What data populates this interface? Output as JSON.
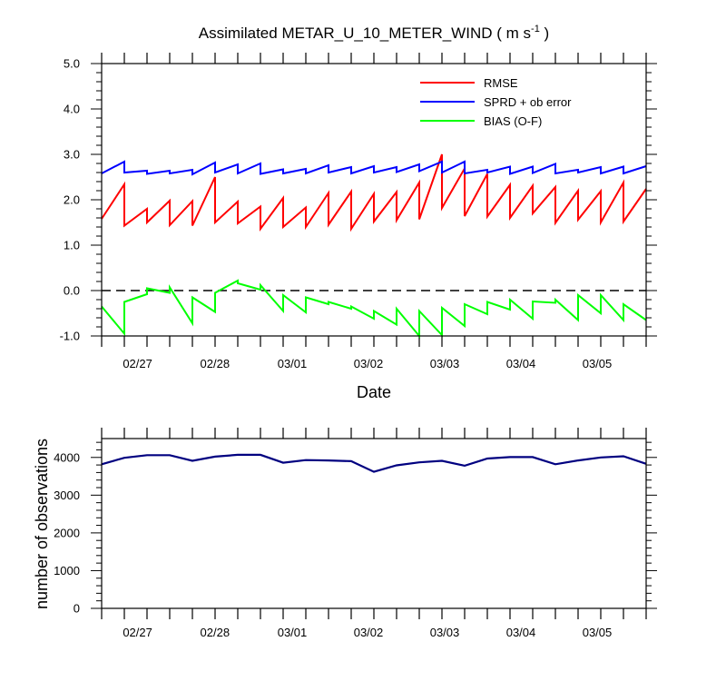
{
  "chart_data": [
    {
      "type": "line",
      "title": "Assimilated METAR_U_10_METER_WIND",
      "title_units": "( m s",
      "title_units_sup": "-1",
      "title_units_close": " )",
      "xlabel": "Date",
      "ylabel": "",
      "ylim": [
        -1.0,
        5.0
      ],
      "yticks": [
        "-1.0",
        "0.0",
        "1.0",
        "2.0",
        "3.0",
        "4.0",
        "5.0"
      ],
      "xlim": [
        0,
        36
      ],
      "xtick_labels": [
        "02/27",
        "02/28",
        "03/01",
        "03/02",
        "03/03",
        "03/04",
        "03/05"
      ],
      "reference_line_y": 0.0,
      "legend_position": "top-right",
      "series": [
        {
          "name": "RMSE",
          "color": "#ff0000",
          "segments": [
            [
              [
                0,
                1.58
              ],
              [
                1.5,
                2.34
              ]
            ],
            [
              [
                1.5,
                1.43
              ],
              [
                3,
                1.8
              ]
            ],
            [
              [
                3,
                1.5
              ],
              [
                4.5,
                1.98
              ]
            ],
            [
              [
                4.5,
                1.44
              ],
              [
                6,
                1.97
              ]
            ],
            [
              [
                6,
                1.43
              ],
              [
                7.5,
                2.5
              ]
            ],
            [
              [
                7.5,
                1.5
              ],
              [
                9,
                1.96
              ]
            ],
            [
              [
                9,
                1.48
              ],
              [
                10.5,
                1.85
              ]
            ],
            [
              [
                10.5,
                1.36
              ],
              [
                12,
                2.04
              ]
            ],
            [
              [
                12,
                1.4
              ],
              [
                13.5,
                1.83
              ]
            ],
            [
              [
                13.5,
                1.4
              ],
              [
                15,
                2.15
              ]
            ],
            [
              [
                15,
                1.45
              ],
              [
                16.5,
                2.18
              ]
            ],
            [
              [
                16.5,
                1.36
              ],
              [
                18,
                2.13
              ]
            ],
            [
              [
                18,
                1.52
              ],
              [
                19.5,
                2.17
              ]
            ],
            [
              [
                19.5,
                1.55
              ],
              [
                21,
                2.38
              ]
            ],
            [
              [
                21,
                1.57
              ],
              [
                22.5,
                3.0
              ]
            ],
            [
              [
                22.5,
                1.82
              ],
              [
                24,
                2.69
              ]
            ],
            [
              [
                24,
                1.64
              ],
              [
                25.5,
                2.57
              ]
            ],
            [
              [
                25.5,
                1.63
              ],
              [
                27,
                2.33
              ]
            ],
            [
              [
                27,
                1.6
              ],
              [
                28.5,
                2.31
              ]
            ],
            [
              [
                28.5,
                1.7
              ],
              [
                30,
                2.28
              ]
            ],
            [
              [
                30,
                1.49
              ],
              [
                31.5,
                2.2
              ]
            ],
            [
              [
                31.5,
                1.56
              ],
              [
                33,
                2.19
              ]
            ],
            [
              [
                33,
                1.5
              ],
              [
                34.5,
                2.38
              ]
            ],
            [
              [
                34.5,
                1.52
              ],
              [
                36,
                2.24
              ]
            ]
          ]
        },
        {
          "name": "SPRD + ob error",
          "color": "#0000ff",
          "segments": [
            [
              [
                0,
                2.58
              ],
              [
                1.5,
                2.84
              ]
            ],
            [
              [
                1.5,
                2.6
              ],
              [
                3,
                2.64
              ]
            ],
            [
              [
                3,
                2.57
              ],
              [
                4.5,
                2.64
              ]
            ],
            [
              [
                4.5,
                2.58
              ],
              [
                6,
                2.66
              ]
            ],
            [
              [
                6,
                2.56
              ],
              [
                7.5,
                2.82
              ]
            ],
            [
              [
                7.5,
                2.6
              ],
              [
                9,
                2.78
              ]
            ],
            [
              [
                9,
                2.58
              ],
              [
                10.5,
                2.8
              ]
            ],
            [
              [
                10.5,
                2.57
              ],
              [
                12,
                2.67
              ]
            ],
            [
              [
                12,
                2.58
              ],
              [
                13.5,
                2.68
              ]
            ],
            [
              [
                13.5,
                2.58
              ],
              [
                15,
                2.76
              ]
            ],
            [
              [
                15,
                2.6
              ],
              [
                16.5,
                2.72
              ]
            ],
            [
              [
                16.5,
                2.58
              ],
              [
                18,
                2.74
              ]
            ],
            [
              [
                18,
                2.6
              ],
              [
                19.5,
                2.72
              ]
            ],
            [
              [
                19.5,
                2.61
              ],
              [
                21,
                2.78
              ]
            ],
            [
              [
                21,
                2.63
              ],
              [
                22.5,
                2.84
              ]
            ],
            [
              [
                22.5,
                2.6
              ],
              [
                24,
                2.84
              ]
            ],
            [
              [
                24,
                2.58
              ],
              [
                25.5,
                2.66
              ]
            ],
            [
              [
                25.5,
                2.6
              ],
              [
                27,
                2.73
              ]
            ],
            [
              [
                27,
                2.57
              ],
              [
                28.5,
                2.73
              ]
            ],
            [
              [
                28.5,
                2.59
              ],
              [
                30,
                2.79
              ]
            ],
            [
              [
                30,
                2.58
              ],
              [
                31.5,
                2.66
              ]
            ],
            [
              [
                31.5,
                2.6
              ],
              [
                33,
                2.72
              ]
            ],
            [
              [
                33,
                2.58
              ],
              [
                34.5,
                2.73
              ]
            ],
            [
              [
                34.5,
                2.58
              ],
              [
                36,
                2.74
              ]
            ]
          ]
        },
        {
          "name": "BIAS (O-F)",
          "color": "#00ff00",
          "segments": [
            [
              [
                0,
                -0.35
              ],
              [
                1.5,
                -0.95
              ]
            ],
            [
              [
                1.5,
                -0.25
              ],
              [
                3,
                -0.08
              ]
            ],
            [
              [
                3,
                0.05
              ],
              [
                4.5,
                -0.05
              ]
            ],
            [
              [
                4.5,
                0.07
              ],
              [
                6,
                -0.72
              ]
            ],
            [
              [
                6,
                -0.15
              ],
              [
                7.5,
                -0.47
              ]
            ],
            [
              [
                7.5,
                -0.05
              ],
              [
                9,
                0.22
              ]
            ],
            [
              [
                9,
                0.16
              ],
              [
                10.5,
                0.02
              ]
            ],
            [
              [
                10.5,
                0.12
              ],
              [
                12,
                -0.45
              ]
            ],
            [
              [
                12,
                -0.1
              ],
              [
                13.5,
                -0.48
              ]
            ],
            [
              [
                13.5,
                -0.15
              ],
              [
                15,
                -0.3
              ]
            ],
            [
              [
                15,
                -0.25
              ],
              [
                16.5,
                -0.4
              ]
            ],
            [
              [
                16.5,
                -0.35
              ],
              [
                18,
                -0.62
              ]
            ],
            [
              [
                18,
                -0.45
              ],
              [
                19.5,
                -0.75
              ]
            ],
            [
              [
                19.5,
                -0.4
              ],
              [
                21,
                -1.0
              ]
            ],
            [
              [
                21,
                -0.45
              ],
              [
                22.5,
                -0.98
              ]
            ],
            [
              [
                22.5,
                -0.38
              ],
              [
                24,
                -0.78
              ]
            ],
            [
              [
                24,
                -0.3
              ],
              [
                25.5,
                -0.52
              ]
            ],
            [
              [
                25.5,
                -0.25
              ],
              [
                27,
                -0.42
              ]
            ],
            [
              [
                27,
                -0.2
              ],
              [
                28.5,
                -0.62
              ]
            ],
            [
              [
                28.5,
                -0.24
              ],
              [
                30,
                -0.27
              ]
            ],
            [
              [
                30,
                -0.2
              ],
              [
                31.5,
                -0.65
              ]
            ],
            [
              [
                31.5,
                -0.1
              ],
              [
                33,
                -0.5
              ]
            ],
            [
              [
                33,
                -0.1
              ],
              [
                34.5,
                -0.65
              ]
            ],
            [
              [
                34.5,
                -0.3
              ],
              [
                36,
                -0.65
              ]
            ]
          ]
        }
      ]
    },
    {
      "type": "line",
      "ylabel": "number of observations",
      "ylim": [
        0,
        4500
      ],
      "yticks": [
        "0",
        "1000",
        "2000",
        "3000",
        "4000"
      ],
      "xlim": [
        0,
        36
      ],
      "xtick_labels": [
        "02/27",
        "02/28",
        "03/01",
        "03/02",
        "03/03",
        "03/04",
        "03/05"
      ],
      "series": [
        {
          "color": "#000080",
          "x": [
            0,
            1.5,
            3,
            4.5,
            6,
            7.5,
            9,
            10.5,
            12,
            13.5,
            15,
            16.5,
            18,
            19.5,
            21,
            22.5,
            24,
            25.5,
            27,
            28.5,
            30,
            31.5,
            33,
            34.5,
            36
          ],
          "y": [
            3820,
            3990,
            4060,
            4060,
            3910,
            4020,
            4070,
            4070,
            3860,
            3930,
            3920,
            3900,
            3620,
            3790,
            3870,
            3910,
            3780,
            3970,
            4010,
            4010,
            3820,
            3920,
            4000,
            4030,
            3830
          ]
        }
      ]
    }
  ]
}
